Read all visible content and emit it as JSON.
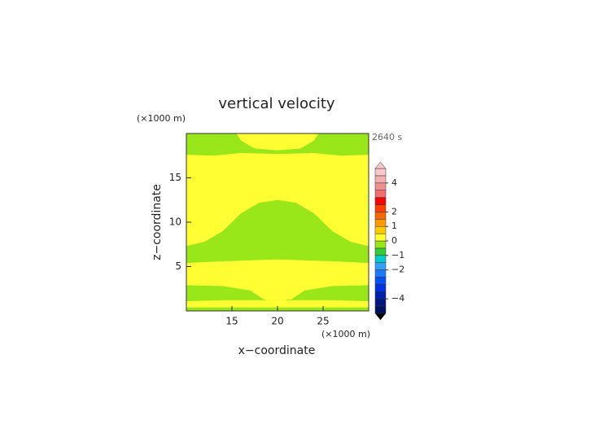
{
  "chart_data": {
    "type": "contour",
    "title": "vertical velocity",
    "time_label": "2640 s",
    "xlabel": "x−coordinate",
    "ylabel": "z−coordinate",
    "x_unit": "(×1000 m)",
    "y_unit": "(×1000 m)",
    "xlim": [
      10,
      30
    ],
    "ylim": [
      0,
      20
    ],
    "xticks": [
      15,
      20,
      25
    ],
    "yticks": [
      5,
      10,
      15
    ],
    "background_value": 0.25,
    "regions": [
      {
        "value": -0.25,
        "points": [
          [
            10,
            17.6
          ],
          [
            13,
            17.5
          ],
          [
            16,
            17.8
          ],
          [
            20,
            17.7
          ],
          [
            24,
            17.8
          ],
          [
            27,
            17.5
          ],
          [
            30,
            17.6
          ],
          [
            30,
            20
          ],
          [
            10,
            20
          ]
        ]
      },
      {
        "value": 0.25,
        "points": [
          [
            15.5,
            20
          ],
          [
            16,
            19.2
          ],
          [
            17.5,
            18.3
          ],
          [
            20,
            18.1
          ],
          [
            22.5,
            18.3
          ],
          [
            24,
            19.2
          ],
          [
            24.5,
            20
          ]
        ]
      },
      {
        "value": -0.25,
        "points": [
          [
            10,
            5.4
          ],
          [
            10,
            7.3
          ],
          [
            12,
            7.8
          ],
          [
            14,
            9.0
          ],
          [
            16,
            11.0
          ],
          [
            18,
            12.2
          ],
          [
            20,
            12.5
          ],
          [
            22,
            12.2
          ],
          [
            24,
            11.0
          ],
          [
            26,
            9.0
          ],
          [
            28,
            7.8
          ],
          [
            30,
            7.3
          ],
          [
            30,
            5.4
          ],
          [
            26,
            5.6
          ],
          [
            20,
            5.8
          ],
          [
            14,
            5.6
          ]
        ]
      },
      {
        "value": -0.25,
        "points": [
          [
            10,
            2.9
          ],
          [
            14,
            2.8
          ],
          [
            17,
            2.3
          ],
          [
            18.5,
            1.3
          ],
          [
            21.5,
            1.3
          ],
          [
            23,
            2.3
          ],
          [
            26,
            2.8
          ],
          [
            30,
            2.9
          ],
          [
            30,
            1.1
          ],
          [
            26,
            1.2
          ],
          [
            20,
            1.2
          ],
          [
            14,
            1.2
          ],
          [
            10,
            1.1
          ]
        ]
      },
      {
        "value": 0.25,
        "points": [
          [
            18.7,
            1.2
          ],
          [
            18.7,
            3.1
          ],
          [
            21,
            3.1
          ],
          [
            21,
            1.2
          ]
        ]
      },
      {
        "value": -0.25,
        "points": [
          [
            10,
            0
          ],
          [
            30,
            0
          ],
          [
            30,
            0.4
          ],
          [
            10,
            0.4
          ]
        ]
      }
    ],
    "colorbar": {
      "levels": [
        -5,
        -4.5,
        -4,
        -3.5,
        -3,
        -2.5,
        -2,
        -1.5,
        -1,
        -0.5,
        0,
        0.5,
        1,
        1.5,
        2,
        2.5,
        3,
        3.5,
        4,
        4.5,
        5
      ],
      "colors": [
        "#001060",
        "#001880",
        "#0020b0",
        "#0030e0",
        "#0050ff",
        "#1e78ff",
        "#33a0ff",
        "#00cccc",
        "#33cc33",
        "#99e619",
        "#ffff33",
        "#ffcc00",
        "#ff9900",
        "#ff6600",
        "#ff4000",
        "#ff0000",
        "#f07070",
        "#f09090",
        "#f4b0b0",
        "#f8c8c8"
      ],
      "extend_colors": [
        "#000000",
        "#f8c8c8"
      ],
      "ticks": [
        4,
        2,
        1,
        0,
        {
          "value": -1,
          "label": "−1"
        },
        {
          "value": -2,
          "label": "−2"
        },
        {
          "value": -4,
          "label": "−4"
        }
      ]
    }
  }
}
